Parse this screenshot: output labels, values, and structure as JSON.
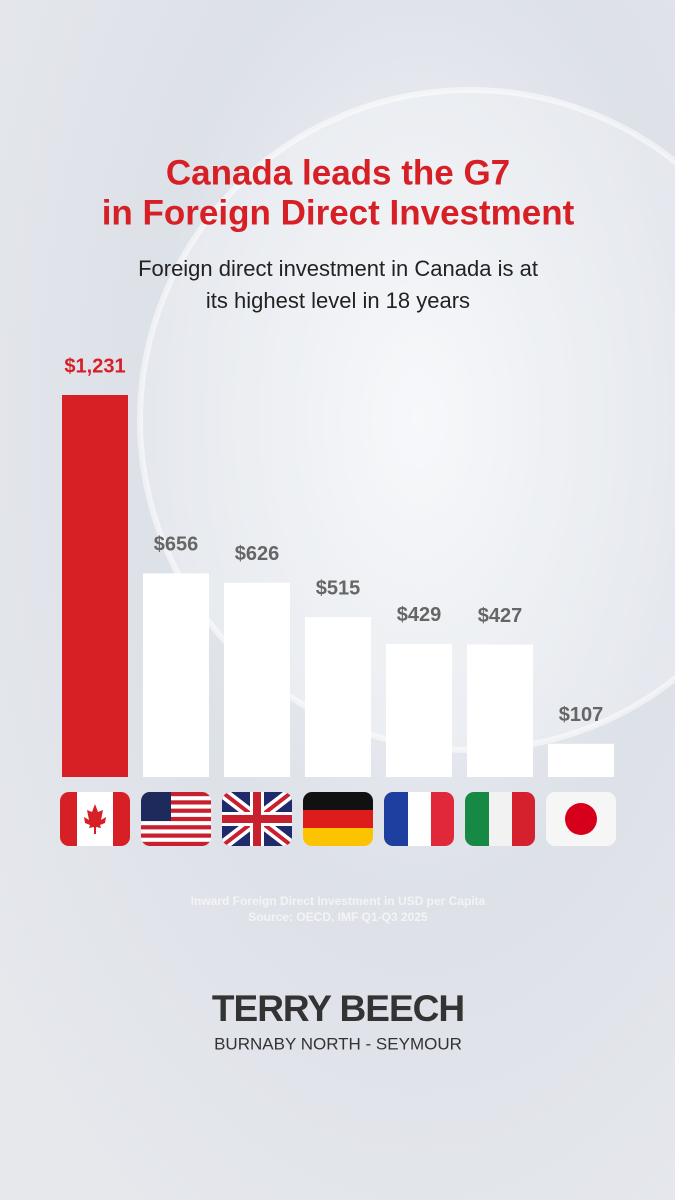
{
  "chart_data": {
    "type": "bar",
    "title": [
      "Canada leads the G7",
      "in Foreign Direct Investment"
    ],
    "subtitle": [
      "Foreign direct investment in Canada is at",
      "its highest level in 18 years"
    ],
    "values": [
      1231,
      656,
      626,
      515,
      429,
      427,
      107
    ],
    "value_labels": [
      "$1,231",
      "$656",
      "$626",
      "$515",
      "$429",
      "$427",
      "$107"
    ],
    "colors": [
      "#d71f26",
      "#ffffff",
      "#ffffff",
      "#ffffff",
      "#ffffff",
      "#ffffff",
      "#ffffff"
    ],
    "notes": [
      "Inward Foreign Direct Investment in USD per Capita",
      "Source: OECD, IMF Q1-Q3 2025"
    ],
    "brand": {
      "name": "TERRY BEECH",
      "riding": "BURNABY NORTH - SEYMOUR"
    }
  }
}
